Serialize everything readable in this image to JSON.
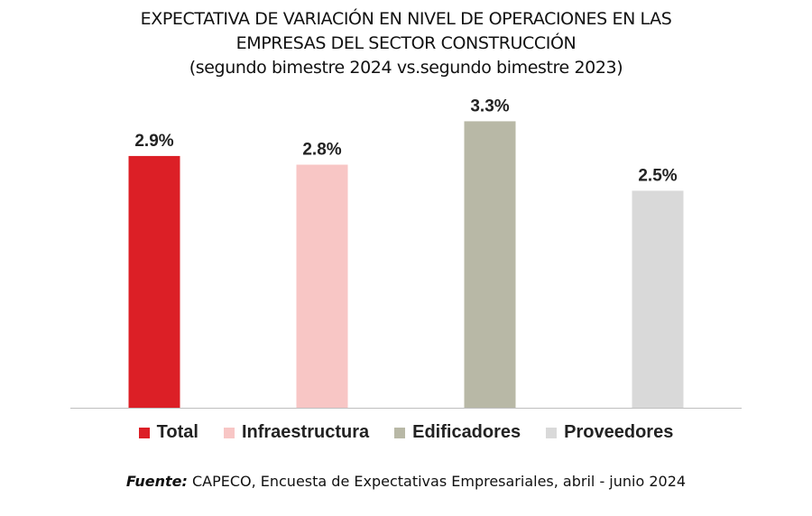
{
  "chart_data": {
    "type": "bar",
    "title_lines": [
      "EXPECTATIVA DE VARIACIÓN EN NIVEL DE OPERACIONES EN LAS",
      "EMPRESAS DEL SECTOR CONSTRUCCIÓN",
      "(segundo bimestre 2024 vs.segundo bimestre 2023)"
    ],
    "categories": [
      "Total",
      "Infraestructura",
      "Edificadores",
      "Proveedores"
    ],
    "values": [
      2.9,
      2.8,
      3.3,
      2.5
    ],
    "data_labels": [
      "2.9%",
      "2.8%",
      "3.3%",
      "2.5%"
    ],
    "colors": [
      "#dc1f26",
      "#f8c6c5",
      "#b8b8a6",
      "#d9d9d9"
    ],
    "ylim": [
      0,
      3.45
    ],
    "grid": false,
    "legend_position": "bottom"
  },
  "source": {
    "label": "Fuente:",
    "text": " CAPECO, Encuesta de Expectativas Empresariales, abril -  junio 2024"
  }
}
